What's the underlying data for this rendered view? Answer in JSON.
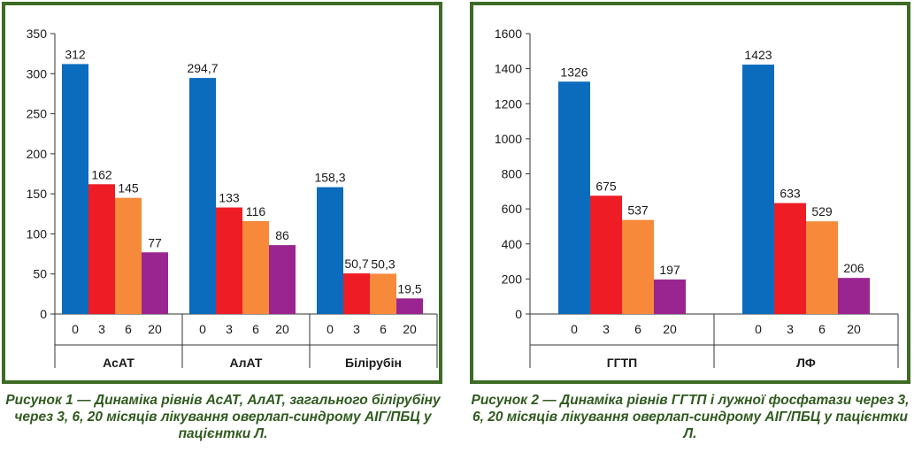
{
  "colors": {
    "border": "#3e6b25",
    "caption": "#2f5a1e",
    "axis": "#333333",
    "series": [
      "#0b6bbd",
      "#ee1c25",
      "#f7893b",
      "#9b2590"
    ]
  },
  "captions": {
    "fig1": "Рисунок 1 — Динаміка рівнів АсАТ, АлАТ, загального білірубіну через 3, 6, 20 місяців лікування оверлап-синдрому АІГ/ПБЦ у пацієнтки Л.",
    "fig2": "Рисунок 2 — Динаміка рівнів ГГТП і лужної фосфатази через 3, 6, 20 місяців лікування оверлап-синдрому АІГ/ПБЦ у пацієнтки Л."
  },
  "chart_data": [
    {
      "type": "bar",
      "title": "",
      "ylim": [
        0,
        350
      ],
      "yticks": [
        "0",
        "50",
        "100",
        "150",
        "200",
        "250",
        "300",
        "350"
      ],
      "subcategories": [
        "0",
        "3",
        "6",
        "20"
      ],
      "groups": [
        {
          "name": "АсАТ",
          "values": [
            312,
            162,
            145,
            77
          ],
          "labels": [
            "312",
            "162",
            "145",
            "77"
          ]
        },
        {
          "name": "АлАТ",
          "values": [
            294.7,
            133,
            116,
            86
          ],
          "labels": [
            "294,7",
            "133",
            "116",
            "86"
          ]
        },
        {
          "name": "Білірубін",
          "values": [
            158.3,
            50.7,
            50.3,
            19.5
          ],
          "labels": [
            "158,3",
            "50,7",
            "50,3",
            "19,5"
          ]
        }
      ],
      "legend": "none",
      "grid": false
    },
    {
      "type": "bar",
      "title": "",
      "ylim": [
        0,
        1600
      ],
      "yticks": [
        "0",
        "200",
        "400",
        "600",
        "800",
        "1000",
        "1200",
        "1400",
        "1600"
      ],
      "subcategories": [
        "0",
        "3",
        "6",
        "20"
      ],
      "groups": [
        {
          "name": "ГГТП",
          "values": [
            1326,
            675,
            537,
            197
          ],
          "labels": [
            "1326",
            "675",
            "537",
            "197"
          ]
        },
        {
          "name": "ЛФ",
          "values": [
            1423,
            633,
            529,
            206
          ],
          "labels": [
            "1423",
            "633",
            "529",
            "206"
          ]
        }
      ],
      "legend": "none",
      "grid": false
    }
  ]
}
